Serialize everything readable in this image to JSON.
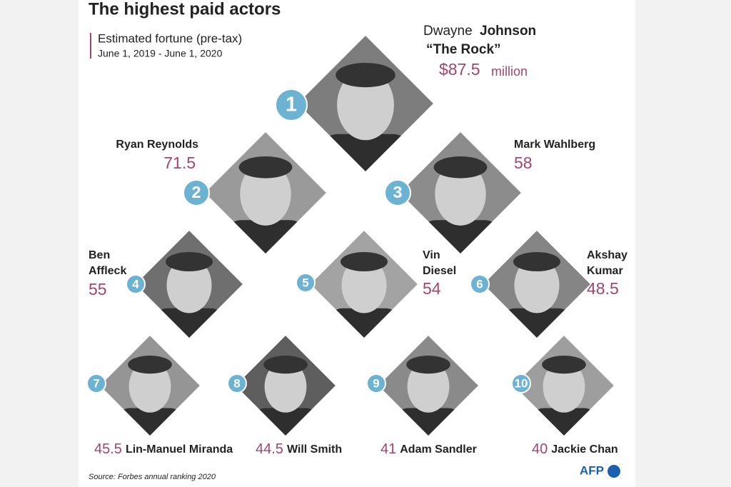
{
  "header": {
    "title": "The highest paid actors",
    "subtitle": "Estimated fortune (pre-tax)",
    "period": "June 1, 2019 - June 1, 2020"
  },
  "actors": [
    {
      "rank": 1,
      "first": "Dwayne",
      "last": "Johnson",
      "nickname": "“The Rock”",
      "value": "$87.5",
      "unit": "million"
    },
    {
      "rank": 2,
      "name": [
        "Ryan Reynolds"
      ],
      "value": 71.5
    },
    {
      "rank": 3,
      "name": [
        "Mark Wahlberg"
      ],
      "value": 58
    },
    {
      "rank": 4,
      "name": [
        "Ben",
        "Affleck"
      ],
      "value": 55
    },
    {
      "rank": 5,
      "name": [
        "Vin",
        "Diesel"
      ],
      "value": 54
    },
    {
      "rank": 6,
      "name": [
        "Akshay",
        "Kumar"
      ],
      "value": 48.5
    },
    {
      "rank": 7,
      "name": [
        "Lin-Manuel Miranda"
      ],
      "value": 45.5
    },
    {
      "rank": 8,
      "name": [
        "Will Smith"
      ],
      "value": 44.5
    },
    {
      "rank": 9,
      "name": [
        "Adam Sandler"
      ],
      "value": 41
    },
    {
      "rank": 10,
      "name": [
        "Jackie Chan"
      ],
      "value": 40
    }
  ],
  "footer": {
    "source": "Source: Forbes annual ranking 2020",
    "logo": "AFP"
  }
}
